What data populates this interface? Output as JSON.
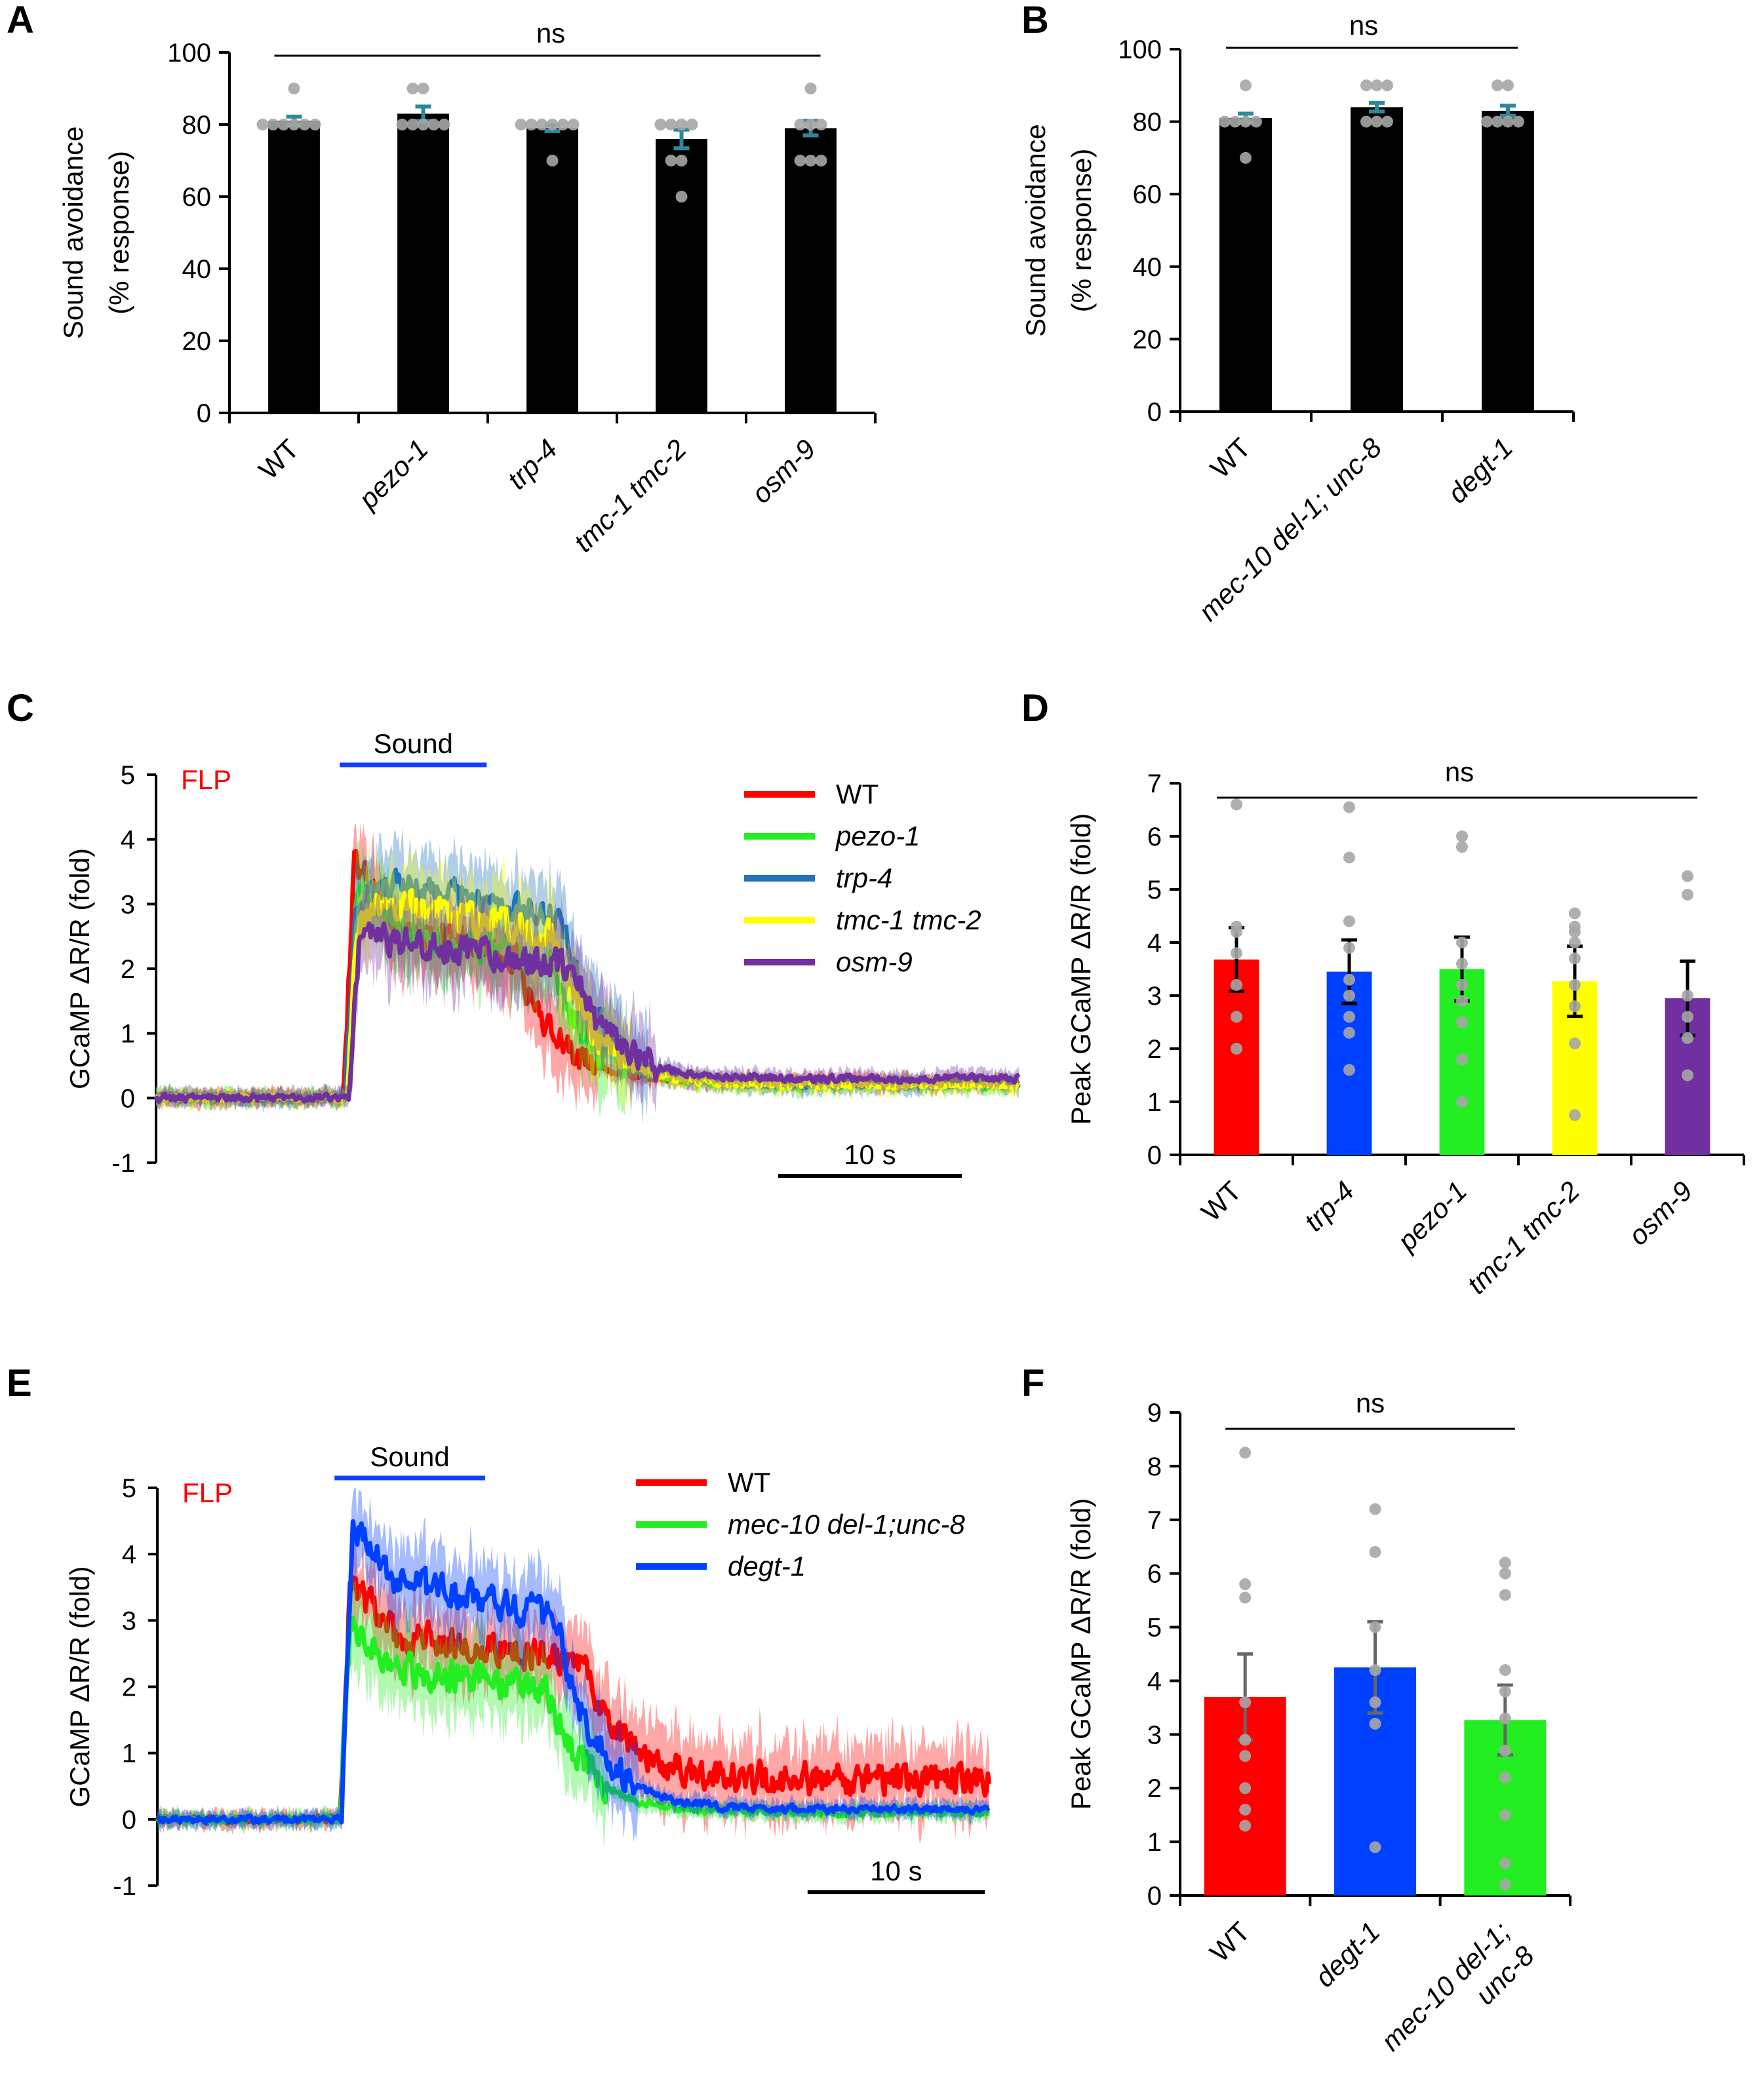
{
  "chart_data": [
    {
      "panel": "A",
      "type": "bar",
      "ylabel": "Sound avoidance",
      "ylabel2": "(% response)",
      "ylim": [
        0,
        100
      ],
      "yticks": [
        0,
        20,
        40,
        60,
        80,
        100
      ],
      "significance": "ns",
      "categories": [
        "WT",
        "pezo-1",
        "trp-4",
        "tmc-1 tmc-2",
        "osm-9"
      ],
      "italic": [
        false,
        true,
        true,
        true,
        true
      ],
      "values": [
        81,
        83,
        79,
        76,
        79
      ],
      "errors": [
        1.2,
        2.0,
        0.8,
        2.6,
        2.0
      ],
      "colors": [
        "#000000",
        "#000000",
        "#000000",
        "#000000",
        "#000000"
      ],
      "points": [
        [
          90,
          80,
          80,
          80,
          80,
          80,
          80
        ],
        [
          90,
          90,
          80,
          80,
          80,
          80,
          80
        ],
        [
          80,
          80,
          80,
          80,
          80,
          80,
          70
        ],
        [
          80,
          80,
          80,
          80,
          70,
          70,
          60
        ],
        [
          90,
          80,
          80,
          80,
          70,
          70,
          70
        ]
      ]
    },
    {
      "panel": "B",
      "type": "bar",
      "ylabel": "Sound avoidance",
      "ylabel2": "(% response)",
      "ylim": [
        0,
        100
      ],
      "yticks": [
        0,
        20,
        40,
        60,
        80,
        100
      ],
      "significance": "ns",
      "categories": [
        "WT",
        "mec-10 del-1; unc-8",
        "degt-1"
      ],
      "italic": [
        false,
        true,
        true
      ],
      "values": [
        81,
        84,
        83
      ],
      "errors": [
        1.2,
        1.2,
        1.4
      ],
      "colors": [
        "#000000",
        "#000000",
        "#000000"
      ],
      "points": [
        [
          90,
          80,
          80,
          80,
          80,
          70
        ],
        [
          90,
          90,
          90,
          80,
          80,
          80
        ],
        [
          90,
          90,
          80,
          80,
          80,
          80
        ]
      ]
    },
    {
      "panel": "C",
      "type": "line",
      "neuron": "FLP",
      "stimulus": "Sound",
      "ylabel": "GCaMP ΔR/R (fold)",
      "ylim": [
        -1,
        5
      ],
      "yticks": [
        -1,
        0,
        1,
        2,
        3,
        4,
        5
      ],
      "xlim": [
        0,
        47
      ],
      "stim": [
        10,
        18
      ],
      "scalebar": "10 s",
      "scalebar_s": 10,
      "series": [
        {
          "name": "WT",
          "color": "#ff0000",
          "rise": 10.2,
          "peak": 3.7,
          "plateau": 2.6,
          "fall": 19.5,
          "post": 0.25
        },
        {
          "name": "pezo-1",
          "color": "#22ee22",
          "rise": 10.4,
          "peak": 3.4,
          "plateau": 2.5,
          "fall": 21.5,
          "post": 0.2
        },
        {
          "name": "trp-4",
          "color": "#1f74bd",
          "rise": 10.3,
          "peak": 3.1,
          "plateau": 3.3,
          "fall": 22.0,
          "post": 0.2
        },
        {
          "name": "tmc-1 tmc-2",
          "color": "#ffff00",
          "rise": 10.4,
          "peak": 2.8,
          "plateau": 3.0,
          "fall": 21.5,
          "post": 0.2
        },
        {
          "name": "osm-9",
          "color": "#7030a0",
          "rise": 10.5,
          "peak": 2.5,
          "plateau": 2.4,
          "fall": 22.5,
          "post": 0.3
        }
      ]
    },
    {
      "panel": "D",
      "type": "bar",
      "ylabel": "Peak GCaMP ΔR/R (fold)",
      "ylim": [
        0,
        7
      ],
      "yticks": [
        0,
        1,
        2,
        3,
        4,
        5,
        6,
        7
      ],
      "significance": "ns",
      "categories": [
        "WT",
        "trp-4",
        "pezo-1",
        "tmc-1 tmc-2",
        "osm-9"
      ],
      "italic": [
        false,
        true,
        true,
        true,
        true
      ],
      "values": [
        3.68,
        3.45,
        3.5,
        3.27,
        2.95
      ],
      "errors": [
        0.6,
        0.6,
        0.6,
        0.66,
        0.7
      ],
      "colors": [
        "#ff0000",
        "#0040ff",
        "#22ee22",
        "#ffff00",
        "#7030a0"
      ],
      "err_color": "#000000",
      "points": [
        [
          6.6,
          4.3,
          4.2,
          3.8,
          3.2,
          2.6,
          2.0
        ],
        [
          6.55,
          5.6,
          4.4,
          3.9,
          3.3,
          3.0,
          2.6,
          2.3,
          1.6
        ],
        [
          6.0,
          5.8,
          4.0,
          3.6,
          3.2,
          2.9,
          2.5,
          1.8,
          1.0
        ],
        [
          4.55,
          4.3,
          4.2,
          4.0,
          3.7,
          3.2,
          2.8,
          2.1,
          0.75
        ],
        [
          5.25,
          4.9,
          3.0,
          2.6,
          2.2,
          1.5
        ]
      ]
    },
    {
      "panel": "E",
      "type": "line",
      "neuron": "FLP",
      "stimulus": "Sound",
      "ylabel": "GCaMP ΔR/R (fold)",
      "ylim": [
        -1,
        5
      ],
      "yticks": [
        -1,
        0,
        1,
        2,
        3,
        4,
        5
      ],
      "xlim": [
        0,
        47
      ],
      "stim": [
        10,
        18.5
      ],
      "scalebar": "10 s",
      "scalebar_s": 10,
      "series": [
        {
          "name": "WT",
          "color": "#ff0000",
          "rise": 10.3,
          "peak": 3.6,
          "plateau": 2.8,
          "fall": 24.0,
          "post": 0.6
        },
        {
          "name": "mec-10 del-1;unc-8",
          "color": "#22ee22",
          "rise": 10.3,
          "peak": 3.0,
          "plateau": 2.3,
          "fall": 22.0,
          "post": 0.1
        },
        {
          "name": "degt-1",
          "color": "#0040ff",
          "rise": 10.4,
          "peak": 4.5,
          "plateau": 3.6,
          "fall": 22.5,
          "post": 0.15
        }
      ]
    },
    {
      "panel": "F",
      "type": "bar",
      "ylabel": "Peak GCaMP ΔR/R (fold)",
      "ylim": [
        0,
        9
      ],
      "yticks": [
        0,
        1,
        2,
        3,
        4,
        5,
        6,
        7,
        8,
        9
      ],
      "significance": "ns",
      "categories": [
        "WT",
        "degt-1",
        "mec-10 del-1;\nunc-8"
      ],
      "italic": [
        false,
        true,
        true
      ],
      "values": [
        3.7,
        4.25,
        3.27
      ],
      "errors": [
        0.8,
        0.85,
        0.65
      ],
      "colors": [
        "#ff0000",
        "#0040ff",
        "#22ee22"
      ],
      "err_color": "#666666",
      "points": [
        [
          8.25,
          5.8,
          5.55,
          3.6,
          2.9,
          2.6,
          2.0,
          1.6,
          1.3
        ],
        [
          7.2,
          6.4,
          5.0,
          4.2,
          3.6,
          3.2,
          0.9
        ],
        [
          6.2,
          6.0,
          5.6,
          4.2,
          3.8,
          3.3,
          2.7,
          2.2,
          1.5,
          0.6,
          0.2
        ]
      ]
    }
  ]
}
